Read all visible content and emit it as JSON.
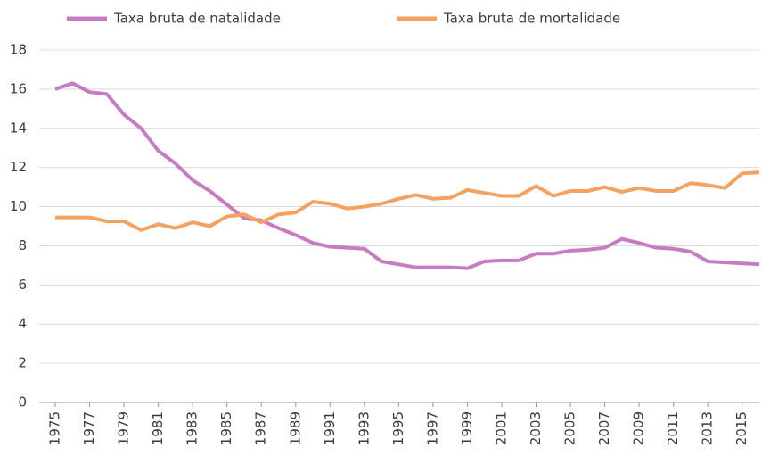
{
  "chart_data": {
    "type": "line",
    "x": [
      1975,
      1976,
      1977,
      1978,
      1979,
      1980,
      1981,
      1982,
      1983,
      1984,
      1985,
      1986,
      1987,
      1988,
      1989,
      1990,
      1991,
      1992,
      1993,
      1994,
      1995,
      1996,
      1997,
      1998,
      1999,
      2000,
      2001,
      2002,
      2003,
      2004,
      2005,
      2006,
      2007,
      2008,
      2009,
      2010,
      2011,
      2012,
      2013,
      2014,
      2015,
      2016
    ],
    "series": [
      {
        "name": "Taxa bruta de natalidade",
        "color": "#c57cc0",
        "values": [
          16.0,
          16.3,
          15.85,
          15.75,
          14.7,
          14.0,
          12.85,
          12.2,
          11.35,
          10.8,
          10.1,
          9.4,
          9.3,
          8.9,
          8.55,
          8.15,
          7.95,
          7.9,
          7.85,
          7.2,
          7.05,
          6.9,
          6.9,
          6.9,
          6.85,
          7.2,
          7.25,
          7.25,
          7.6,
          7.6,
          7.75,
          7.8,
          7.9,
          8.35,
          8.15,
          7.9,
          7.85,
          7.7,
          7.2,
          7.15,
          7.1,
          7.05
        ]
      },
      {
        "name": "Taxa bruta de mortalidade",
        "color": "#f4a261",
        "values": [
          9.45,
          9.45,
          9.45,
          9.25,
          9.25,
          8.8,
          9.1,
          8.9,
          9.2,
          9.0,
          9.5,
          9.6,
          9.2,
          9.6,
          9.7,
          10.25,
          10.15,
          9.9,
          10.0,
          10.15,
          10.4,
          10.6,
          10.4,
          10.45,
          10.85,
          10.7,
          10.55,
          10.55,
          11.05,
          10.55,
          10.8,
          10.8,
          11.0,
          10.75,
          10.95,
          10.8,
          10.8,
          11.2,
          11.1,
          10.95,
          11.7,
          11.75
        ]
      }
    ],
    "xlim": [
      1975,
      2016
    ],
    "xticks": [
      1975,
      1977,
      1979,
      1981,
      1983,
      1985,
      1987,
      1989,
      1991,
      1993,
      1995,
      1997,
      1999,
      2001,
      2003,
      2005,
      2007,
      2009,
      2011,
      2013,
      2015
    ],
    "ylim": [
      0,
      18
    ],
    "yticks": [
      0,
      2,
      4,
      6,
      8,
      10,
      12,
      14,
      16,
      18
    ],
    "grid": true
  }
}
